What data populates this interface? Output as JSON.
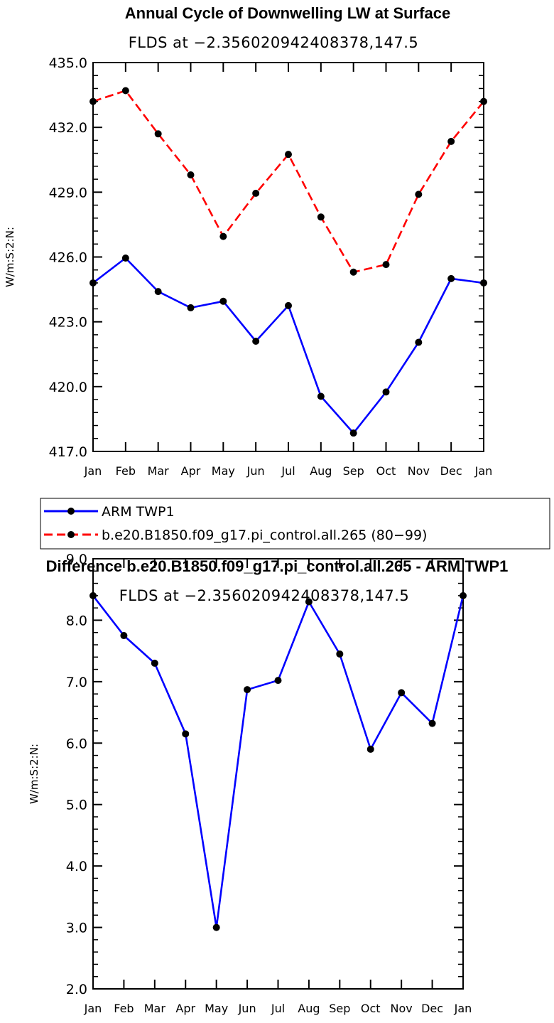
{
  "chart_data": [
    {
      "type": "line",
      "title": "Annual Cycle of Downwelling LW at Surface",
      "subtitle": "FLDS at −2.356020942408378,147.5",
      "ylabel": "W/m:S:2:N:",
      "xlabel": "",
      "categories": [
        "Jan",
        "Feb",
        "Mar",
        "Apr",
        "May",
        "Jun",
        "Jul",
        "Aug",
        "Sep",
        "Oct",
        "Nov",
        "Dec",
        "Jan"
      ],
      "ylim": [
        417.0,
        435.0
      ],
      "yticks": [
        "417.0",
        "420.0",
        "423.0",
        "426.0",
        "429.0",
        "432.0",
        "435.0"
      ],
      "series": [
        {
          "name": "ARM TWP1",
          "color": "#0000ff",
          "dash": "solid",
          "values": [
            424.8,
            425.95,
            424.4,
            423.65,
            423.95,
            422.1,
            423.75,
            419.55,
            417.85,
            419.75,
            422.05,
            425.0,
            424.8
          ]
        },
        {
          "name": "b.e20.B1850.f09_g17.pi_control.all.265 (80−99)",
          "color": "#ff0000",
          "dash": "dashed",
          "values": [
            433.2,
            433.7,
            431.7,
            429.8,
            426.95,
            428.95,
            430.75,
            427.85,
            425.3,
            425.65,
            428.9,
            431.35,
            433.2
          ]
        }
      ]
    },
    {
      "type": "line",
      "title": "Difference b.e20.B1850.f09_g17.pi_control.all.265 - ARM TWP1",
      "subtitle": "FLDS at −2.356020942408378,147.5",
      "ylabel": "W/m:S:2:N:",
      "xlabel": "",
      "categories": [
        "Jan",
        "Feb",
        "Mar",
        "Apr",
        "May",
        "Jun",
        "Jul",
        "Aug",
        "Sep",
        "Oct",
        "Nov",
        "Dec",
        "Jan"
      ],
      "ylim": [
        2.0,
        9.0
      ],
      "yticks": [
        "2.0",
        "3.0",
        "4.0",
        "5.0",
        "6.0",
        "7.0",
        "8.0",
        "9.0"
      ],
      "series": [
        {
          "name": "Difference",
          "color": "#0000ff",
          "dash": "solid",
          "values": [
            8.4,
            7.75,
            7.3,
            6.15,
            3.0,
            6.87,
            7.02,
            8.3,
            7.45,
            5.9,
            6.82,
            6.32,
            8.4
          ]
        }
      ]
    }
  ]
}
